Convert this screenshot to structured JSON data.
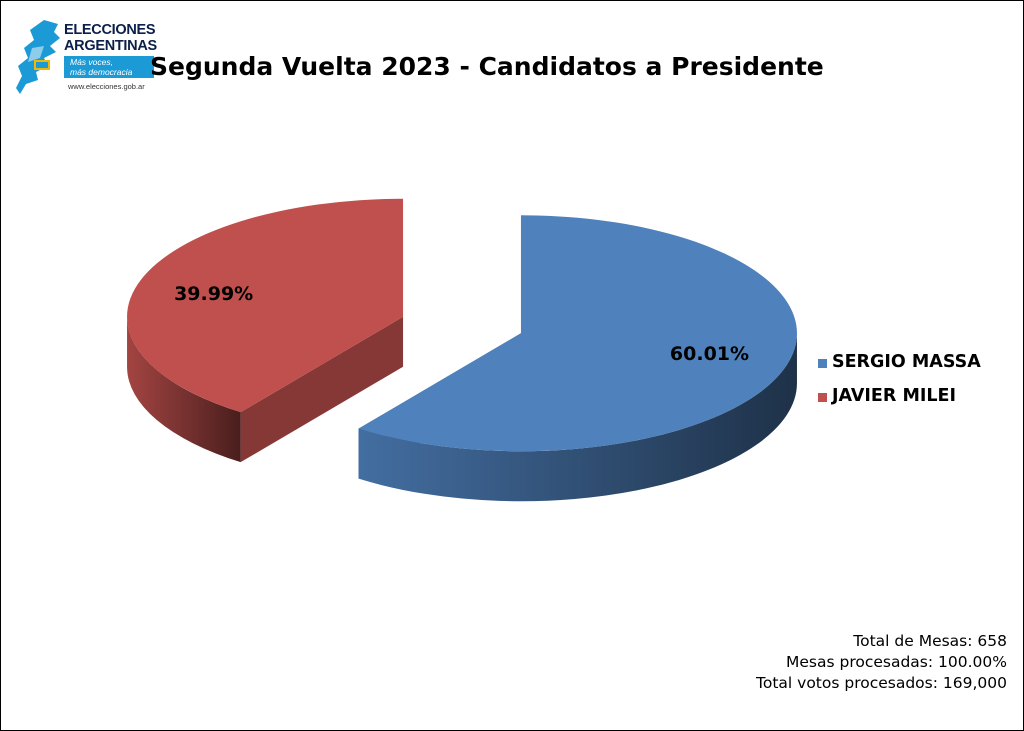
{
  "logo": {
    "line1": "ELECCIONES",
    "line2": "ARGENTINAS",
    "slogan_line1": "Más voces,",
    "slogan_line2": "más democracia",
    "url": "www.elecciones.gob.ar"
  },
  "chart_data": {
    "type": "pie",
    "title": "Segunda Vuelta 2023 - Candidatos a Presidente",
    "style": "3d-exploded",
    "legend_position": "right",
    "series": [
      {
        "name": "SERGIO MASSA",
        "value": 60.01,
        "label": "60.01%",
        "color": "#4f81bd"
      },
      {
        "name": "JAVIER MILEI",
        "value": 39.99,
        "label": "39.99%",
        "color": "#c0504d"
      }
    ]
  },
  "stats": {
    "total_mesas": "Total de Mesas: 658",
    "mesas_procesadas": "Mesas procesadas: 100.00%",
    "total_votos": "Total votos procesados: 169,000"
  }
}
